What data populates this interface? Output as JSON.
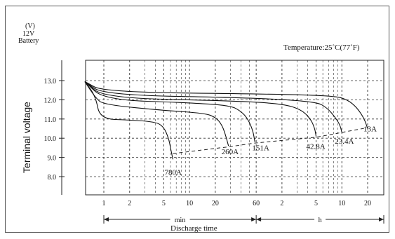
{
  "header": {
    "unit": "(V)",
    "voltage": "12V",
    "battery": "Battery",
    "temperature": "Temperature:25˚C(77˚F)"
  },
  "chart_data": {
    "type": "line",
    "title": "",
    "ylabel": "Terminal voltage",
    "xlabel": "Discharge time",
    "ylim": [
      7.2,
      13.6
    ],
    "y_ticks": [
      "13.0",
      "12.0",
      "11.0",
      "10.0",
      "9.0",
      "8.0"
    ],
    "x_scale": "log",
    "x_unit": "minutes",
    "xlim": [
      0.5,
      1800
    ],
    "x_ticks": [
      {
        "label": "1",
        "minutes": 1
      },
      {
        "label": "2",
        "minutes": 2
      },
      {
        "label": "5",
        "minutes": 5
      },
      {
        "label": "10",
        "minutes": 10
      },
      {
        "label": "20",
        "minutes": 20
      },
      {
        "label": "60",
        "minutes": 60
      },
      {
        "label": "2",
        "minutes": 120
      },
      {
        "label": "5",
        "minutes": 300
      },
      {
        "label": "10",
        "minutes": 600
      },
      {
        "label": "20",
        "minutes": 1200
      }
    ],
    "range_labels": {
      "min": "min",
      "h": "h"
    },
    "series": [
      {
        "name": "780A",
        "points": [
          [
            0.6,
            12.95
          ],
          [
            0.8,
            12.2
          ],
          [
            0.9,
            11.0
          ],
          [
            2,
            10.95
          ],
          [
            4,
            10.85
          ],
          [
            5,
            10.6
          ],
          [
            5.7,
            10.0
          ],
          [
            6,
            9.5
          ],
          [
            6.4,
            8.9
          ]
        ]
      },
      {
        "name": "260A",
        "points": [
          [
            0.6,
            12.95
          ],
          [
            0.8,
            12.1
          ],
          [
            1,
            11.75
          ],
          [
            5,
            11.45
          ],
          [
            15,
            11.3
          ],
          [
            20,
            11.1
          ],
          [
            24,
            10.7
          ],
          [
            27,
            10.0
          ],
          [
            28.5,
            9.6
          ]
        ]
      },
      {
        "name": "151A",
        "points": [
          [
            0.6,
            12.95
          ],
          [
            1,
            12.0
          ],
          [
            10,
            11.85
          ],
          [
            30,
            11.7
          ],
          [
            40,
            11.4
          ],
          [
            48,
            11.0
          ],
          [
            55,
            10.4
          ],
          [
            58,
            9.8
          ]
        ]
      },
      {
        "name": "42.8A",
        "points": [
          [
            0.6,
            12.95
          ],
          [
            1,
            12.1
          ],
          [
            30,
            11.95
          ],
          [
            120,
            11.8
          ],
          [
            200,
            11.5
          ],
          [
            260,
            11.0
          ],
          [
            290,
            10.5
          ],
          [
            300,
            10.1
          ]
        ]
      },
      {
        "name": "23.4A",
        "points": [
          [
            0.6,
            12.95
          ],
          [
            1,
            12.25
          ],
          [
            60,
            12.1
          ],
          [
            300,
            11.9
          ],
          [
            400,
            11.6
          ],
          [
            500,
            11.1
          ],
          [
            570,
            10.7
          ],
          [
            600,
            10.3
          ]
        ]
      },
      {
        "name": "13A",
        "points": [
          [
            0.6,
            12.95
          ],
          [
            1,
            12.4
          ],
          [
            100,
            12.3
          ],
          [
            500,
            12.2
          ],
          [
            700,
            12.0
          ],
          [
            900,
            11.6
          ],
          [
            1100,
            11.0
          ],
          [
            1200,
            10.5
          ]
        ]
      }
    ],
    "cutoff_line": [
      [
        6.4,
        9.2
      ],
      [
        28.5,
        9.55
      ],
      [
        58,
        9.75
      ],
      [
        300,
        10.05
      ],
      [
        600,
        10.3
      ],
      [
        1200,
        10.55
      ]
    ],
    "grid": true
  }
}
